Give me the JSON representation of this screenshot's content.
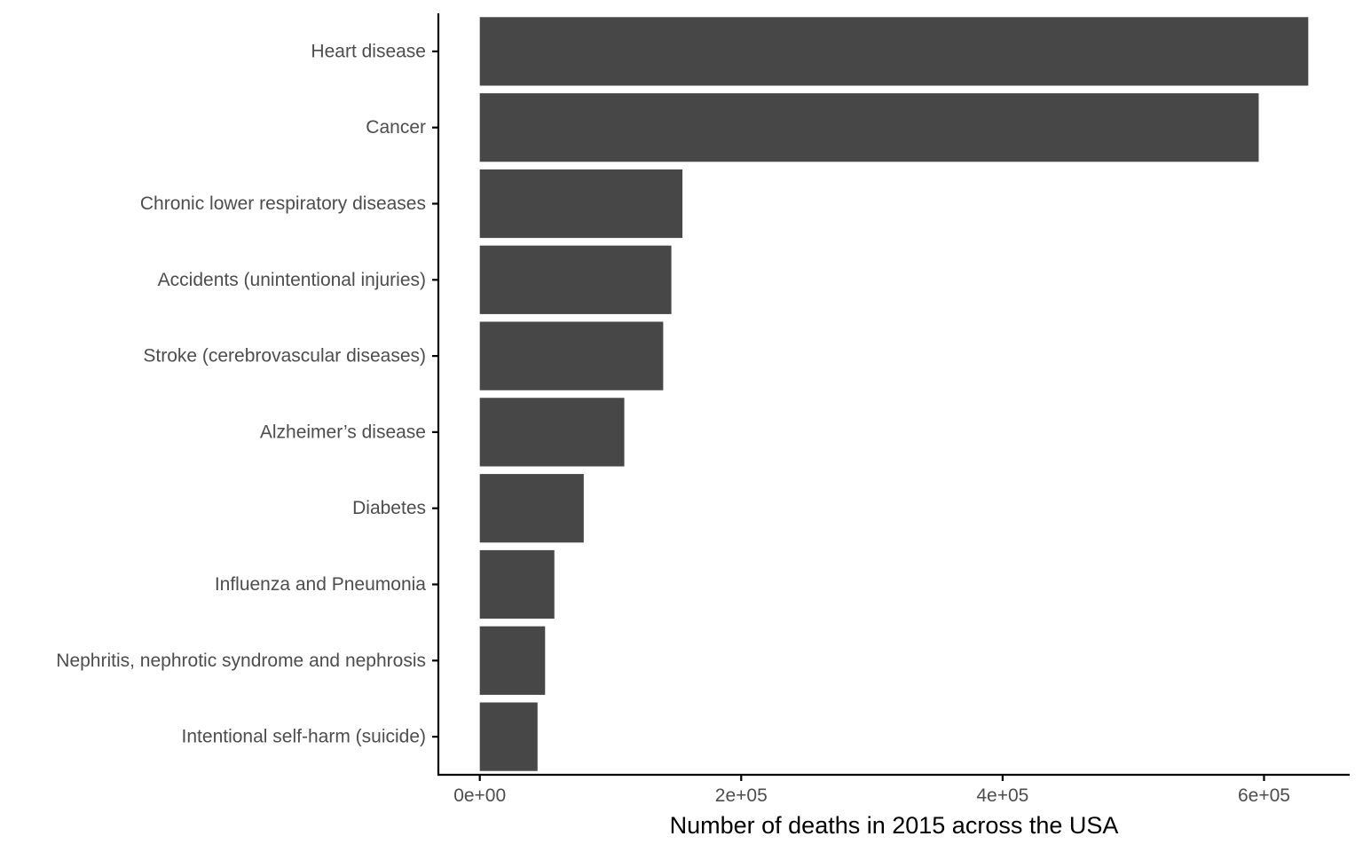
{
  "chart_data": {
    "type": "bar",
    "orientation": "horizontal",
    "categories": [
      "Heart disease",
      "Cancer",
      "Chronic lower respiratory diseases",
      "Accidents (unintentional injuries)",
      "Stroke (cerebrovascular diseases)",
      "Alzheimer’s disease",
      "Diabetes",
      "Influenza and Pneumonia",
      "Nephritis, nephrotic syndrome and nephrosis",
      "Intentional self-harm (suicide)"
    ],
    "values": [
      633842,
      595930,
      155041,
      146571,
      140323,
      110561,
      79535,
      57062,
      49959,
      44193
    ],
    "xlabel": "Number of deaths in 2015 across the USA",
    "ylabel": "",
    "x_ticks": [
      {
        "value": 0,
        "label": "0e+00"
      },
      {
        "value": 200000,
        "label": "2e+05"
      },
      {
        "value": 400000,
        "label": "4e+05"
      },
      {
        "value": 600000,
        "label": "6e+05"
      }
    ],
    "xlim": [
      -31692,
      665534
    ],
    "grid": false,
    "legend": "none",
    "bar_color": "#474747",
    "axis_color": "#000000"
  }
}
